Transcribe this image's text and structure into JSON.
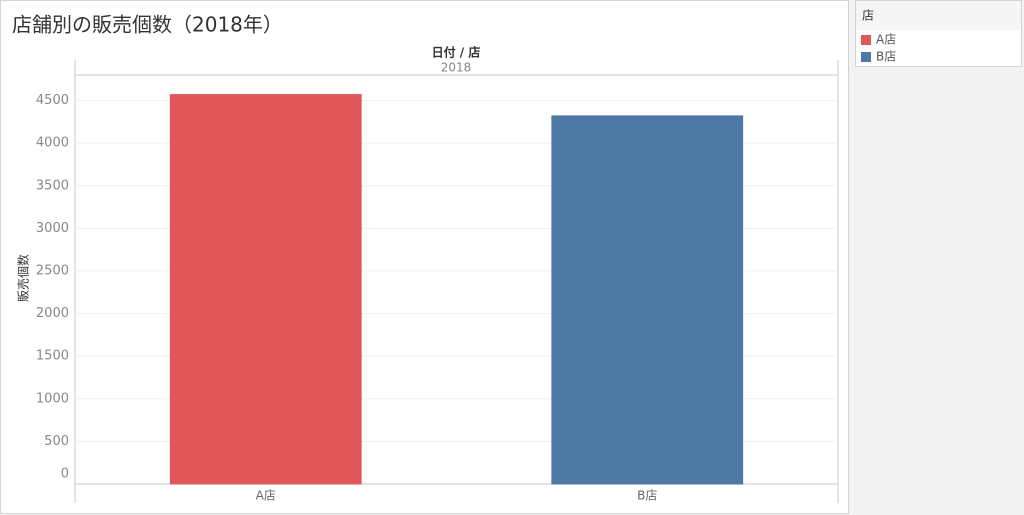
{
  "chart_data": {
    "type": "bar",
    "title": "店舗別の販売個数（2018年）",
    "column_header": "日付 / 店",
    "column_label": "2018",
    "y_label": "販売個数",
    "categories": [
      "A店",
      "B店"
    ],
    "values": [
      4570,
      4320
    ],
    "colors": [
      "#e15759",
      "#4e79a7"
    ],
    "ylim": [
      0,
      4800
    ],
    "yticks": [
      0,
      500,
      1000,
      1500,
      2000,
      2500,
      3000,
      3500,
      4000,
      4500
    ],
    "grid": true,
    "legend_title": "店",
    "legend": "top-right"
  }
}
